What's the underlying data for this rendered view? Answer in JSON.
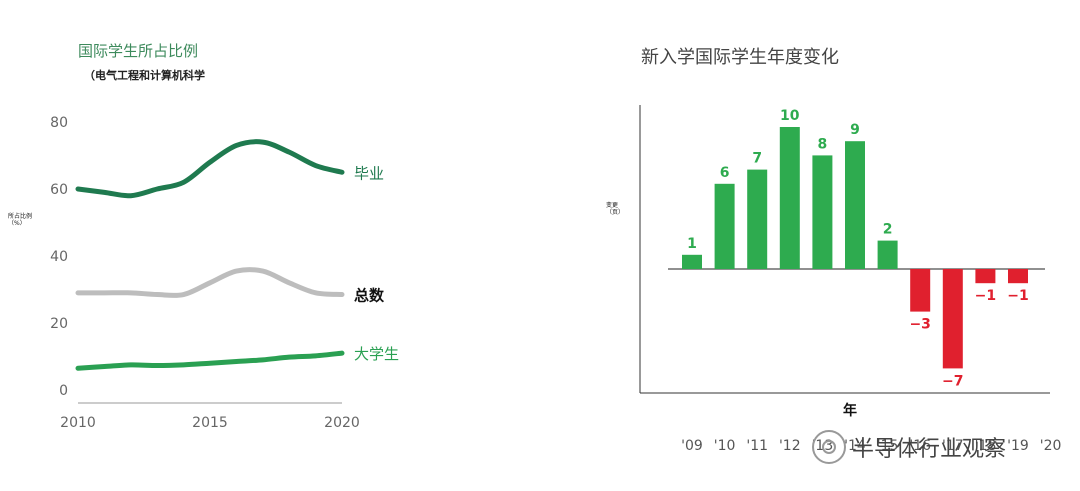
{
  "left_chart": {
    "title": "国际学生所占比例",
    "subtitle": "（电气工程和计算机科学",
    "ylabel": "所占比例（%）",
    "yticks": [
      "80",
      "60",
      "40",
      "20",
      "0"
    ],
    "xticks": [
      "2010",
      "2015",
      "2020"
    ]
  },
  "right_chart": {
    "title": "新入学国际学生年度变化",
    "ylabel": "变更（页）",
    "xlabel": "年",
    "xticks": [
      "'09",
      "'10",
      "'11",
      "'12",
      "'13",
      "'14",
      "'15",
      "'16",
      "'17",
      "'18",
      "'19",
      "'20"
    ]
  },
  "watermark": "半导体行业观察",
  "colors": {
    "dark_green": "#1f7a4f",
    "gray": "#bdbdbd",
    "light_green": "#2aa052",
    "bar_green": "#2eab4f",
    "bar_red": "#e0202e"
  },
  "chart_data": [
    {
      "type": "line",
      "title": "国际学生所占比例",
      "subtitle": "（电气工程和计算机科学",
      "xlabel": "",
      "ylabel": "所占比例（%）",
      "xlim": [
        2010,
        2020
      ],
      "ylim": [
        0,
        80
      ],
      "x": [
        2010,
        2011,
        2012,
        2013,
        2014,
        2015,
        2016,
        2017,
        2018,
        2019,
        2020
      ],
      "series": [
        {
          "name": "毕业",
          "values": [
            60,
            59,
            58,
            60,
            62,
            68,
            73,
            74,
            71,
            67,
            65
          ]
        },
        {
          "name": "总数",
          "values": [
            29,
            29,
            29,
            28.5,
            28.5,
            32,
            35.5,
            35.5,
            32,
            29,
            28.5
          ]
        },
        {
          "name": "大学生",
          "values": [
            6.5,
            7,
            7.5,
            7.3,
            7.5,
            8,
            8.5,
            9,
            9.8,
            10.2,
            11
          ]
        }
      ],
      "legend_placement": "inline-right",
      "grid": false
    },
    {
      "type": "bar",
      "title": "新入学国际学生年度变化",
      "xlabel": "年",
      "ylabel": "变更（页）",
      "categories": [
        "'09",
        "'10",
        "'11",
        "'12",
        "'13",
        "'14",
        "'15",
        "'16",
        "'17",
        "'18",
        "'19"
      ],
      "values": [
        1,
        6,
        7,
        10,
        8,
        9,
        2,
        -3,
        -7,
        -1,
        -1
      ],
      "data_labels": [
        "1",
        "6",
        "7",
        "10",
        "8",
        "9",
        "2",
        "−3",
        "−7",
        "−1",
        "−1"
      ],
      "ylim": [
        -7.2,
        11
      ],
      "grid": false
    }
  ]
}
